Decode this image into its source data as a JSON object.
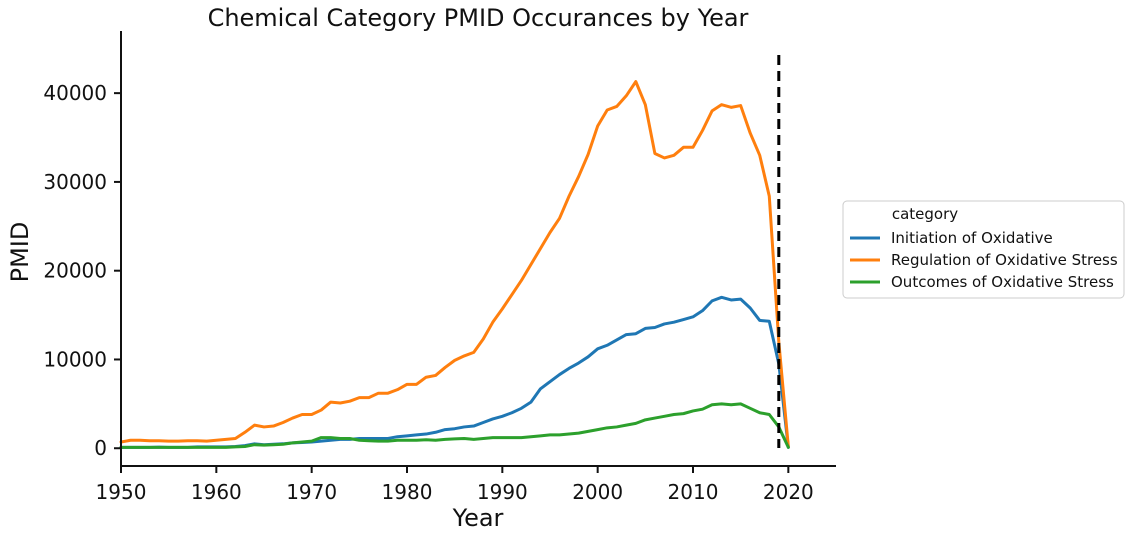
{
  "chart_data": {
    "type": "line",
    "title": "Chemical Category PMID Occurances by Year",
    "xlabel": "Year",
    "ylabel": "PMID",
    "xlim": [
      1950,
      2025
    ],
    "ylim": [
      -2000,
      47000
    ],
    "xticks": [
      1950,
      1960,
      1970,
      1980,
      1990,
      2000,
      2010,
      2020
    ],
    "yticks": [
      0,
      10000,
      20000,
      30000,
      40000
    ],
    "grid": false,
    "legend": {
      "title": "category",
      "placement": "right"
    },
    "vline": {
      "x": 2019,
      "style": "dashed",
      "color": "#000000"
    },
    "x": [
      1950,
      1951,
      1952,
      1953,
      1954,
      1955,
      1956,
      1957,
      1958,
      1959,
      1960,
      1961,
      1962,
      1963,
      1964,
      1965,
      1966,
      1967,
      1968,
      1969,
      1970,
      1971,
      1972,
      1973,
      1974,
      1975,
      1976,
      1977,
      1978,
      1979,
      1980,
      1981,
      1982,
      1983,
      1984,
      1985,
      1986,
      1987,
      1988,
      1989,
      1990,
      1991,
      1992,
      1993,
      1994,
      1995,
      1996,
      1997,
      1998,
      1999,
      2000,
      2001,
      2002,
      2003,
      2004,
      2005,
      2006,
      2007,
      2008,
      2009,
      2010,
      2011,
      2012,
      2013,
      2014,
      2015,
      2016,
      2017,
      2018,
      2019,
      2020
    ],
    "series": [
      {
        "name": "Initiation of Oxidative",
        "color": "#1f77b4",
        "values": [
          100,
          100,
          100,
          100,
          120,
          100,
          100,
          100,
          150,
          150,
          150,
          150,
          200,
          300,
          500,
          400,
          450,
          500,
          600,
          650,
          700,
          800,
          900,
          1000,
          1000,
          1100,
          1100,
          1100,
          1100,
          1300,
          1400,
          1500,
          1600,
          1800,
          2100,
          2200,
          2400,
          2500,
          2900,
          3300,
          3600,
          4000,
          4500,
          5200,
          6700,
          7500,
          8300,
          9000,
          9600,
          10300,
          11200,
          11600,
          12200,
          12800,
          12900,
          13500,
          13600,
          14000,
          14200,
          14500,
          14800,
          15500,
          16600,
          17000,
          16700,
          16800,
          15800,
          14400,
          14300,
          9500,
          100
        ]
      },
      {
        "name": "Regulation of Oxidative Stress",
        "color": "#ff7f0e",
        "values": [
          700,
          900,
          900,
          850,
          850,
          800,
          800,
          850,
          850,
          800,
          900,
          1000,
          1100,
          1800,
          2600,
          2400,
          2500,
          2900,
          3400,
          3800,
          3800,
          4300,
          5200,
          5100,
          5300,
          5700,
          5700,
          6200,
          6200,
          6600,
          7200,
          7200,
          8000,
          8200,
          9100,
          9900,
          10400,
          10800,
          12300,
          14200,
          15700,
          17300,
          18900,
          20700,
          22500,
          24300,
          25900,
          28400,
          30600,
          33100,
          36300,
          38100,
          38500,
          39700,
          41300,
          38700,
          33200,
          32700,
          33000,
          33900,
          33900,
          35800,
          38000,
          38700,
          38400,
          38600,
          35500,
          33000,
          28400,
          12000,
          200
        ]
      },
      {
        "name": "Outcomes of Oxidative Stress",
        "color": "#2ca02c",
        "values": [
          100,
          100,
          100,
          100,
          100,
          100,
          100,
          100,
          100,
          100,
          100,
          100,
          150,
          200,
          400,
          350,
          400,
          450,
          600,
          700,
          800,
          1200,
          1200,
          1100,
          1100,
          900,
          850,
          800,
          800,
          900,
          900,
          900,
          950,
          900,
          1000,
          1050,
          1100,
          1000,
          1100,
          1200,
          1200,
          1200,
          1200,
          1300,
          1400,
          1500,
          1500,
          1600,
          1700,
          1900,
          2100,
          2300,
          2400,
          2600,
          2800,
          3200,
          3400,
          3600,
          3800,
          3900,
          4200,
          4400,
          4900,
          5000,
          4900,
          5000,
          4500,
          4000,
          3800,
          2400,
          100
        ]
      }
    ]
  }
}
